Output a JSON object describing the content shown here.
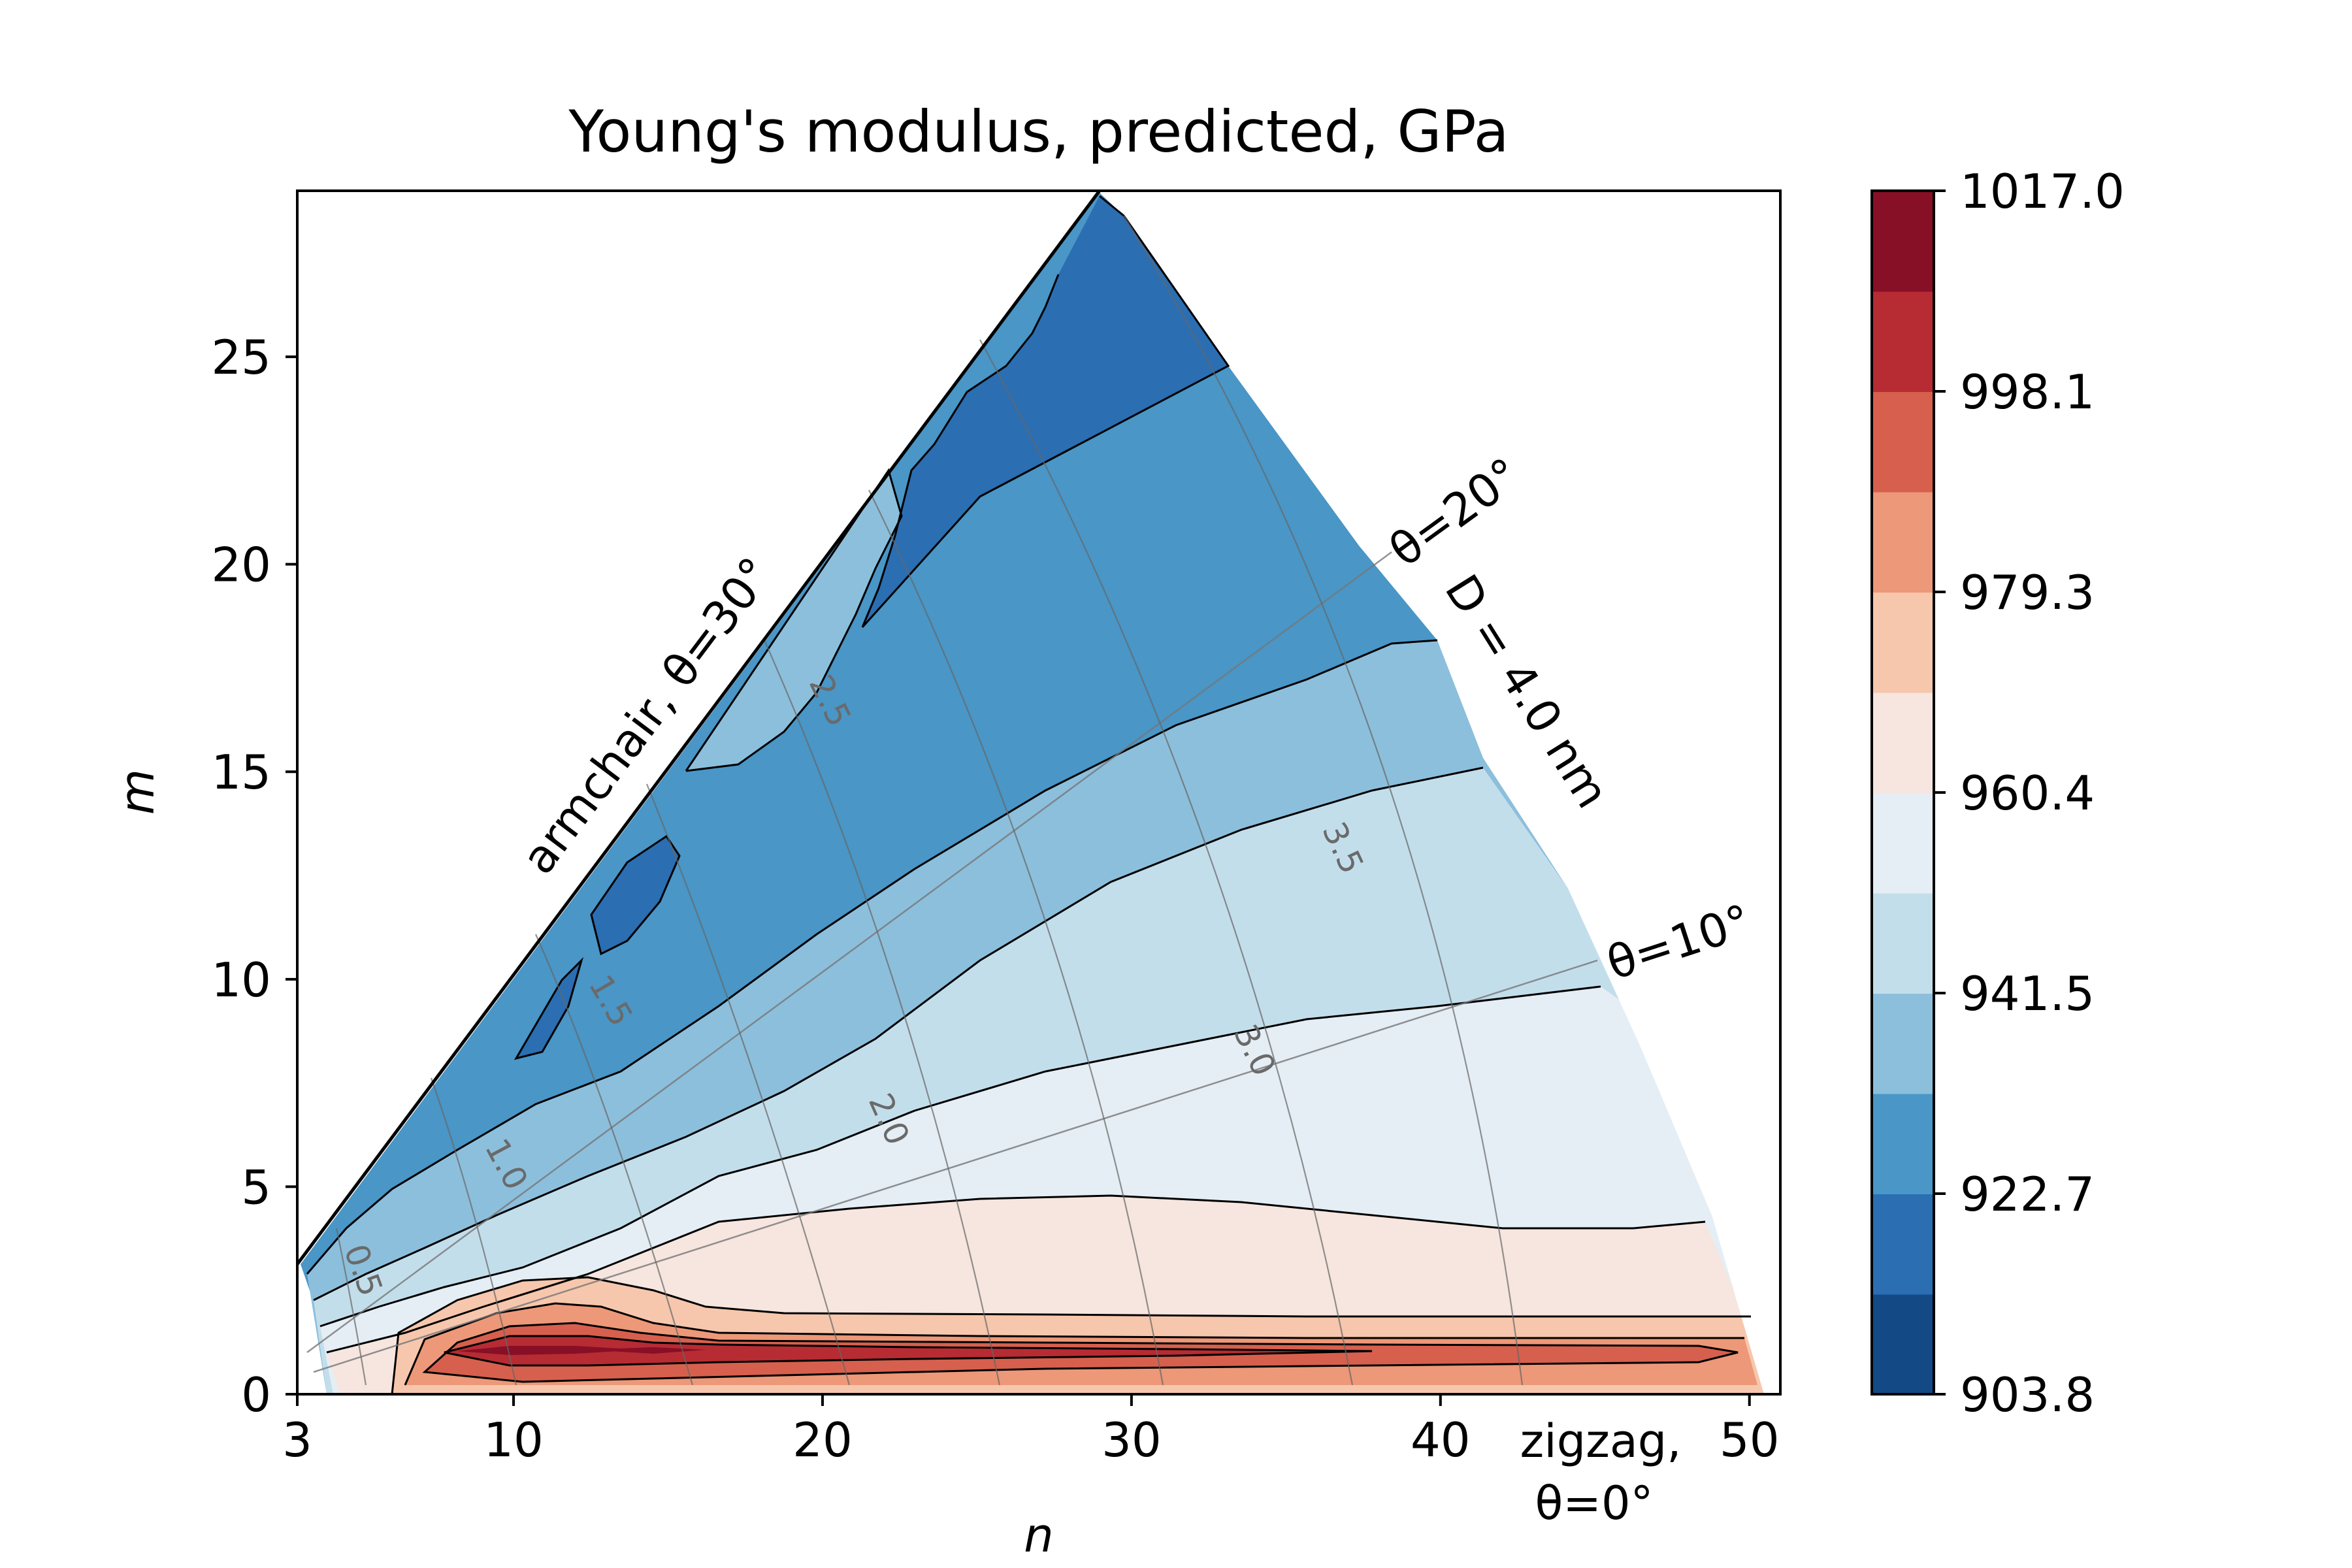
{
  "chart_data": {
    "type": "contourf",
    "title": "Young's modulus, predicted, GPa",
    "xlabel": "n",
    "ylabel": "m",
    "xlim": [
      3,
      51
    ],
    "ylim": [
      0,
      29
    ],
    "x_ticks": [
      3,
      10,
      20,
      30,
      40,
      50
    ],
    "y_ticks": [
      0,
      5,
      10,
      15,
      20,
      25
    ],
    "colorbar": {
      "ticks": [
        "1017.0",
        "998.1",
        "979.3",
        "960.4",
        "941.5",
        "922.7",
        "903.8"
      ],
      "min": 903.8,
      "max": 1017.0,
      "levels": 12,
      "colors": [
        "#053061",
        "#2166ac",
        "#4393c3",
        "#92c5de",
        "#d1e5f0",
        "#f7f7f7",
        "#fddbc7",
        "#f4a582",
        "#d6604d",
        "#b2182b",
        "#67001f",
        "#4a0011"
      ],
      "band_colors": [
        "#134a86",
        "#2b6eb2",
        "#4996c7",
        "#8cbfdc",
        "#c3deeb",
        "#e5eef5",
        "#f6e6df",
        "#f6c7ad",
        "#ed9878",
        "#d6604d",
        "#b72b33",
        "#870f26"
      ]
    },
    "annotations": {
      "armchair": "armchair, θ=30°",
      "zigzag_line1": "zigzag,",
      "zigzag_line2": "θ=0°",
      "theta20": "θ=20°",
      "theta10": "θ=10°",
      "diameter": "D = 4.0 nm"
    },
    "diameter_contour_labels": [
      "0.5",
      "1.0",
      "1.5",
      "2.0",
      "2.5",
      "3.0",
      "3.5"
    ],
    "value_regions_GPa": [
      {
        "region": "m ≤ 1 (near zigzag)",
        "value_range": [
          979.3,
          1017.0
        ]
      },
      {
        "region": "m ≈ 1–4",
        "value_range": [
          960.4,
          969.9
        ]
      },
      {
        "region": "m ≈ 4–9",
        "value_range": [
          951.0,
          960.4
        ]
      },
      {
        "region": "m ≈ 9–15",
        "value_range": [
          941.5,
          951.0
        ]
      },
      {
        "region": "m ≈ 15–20",
        "value_range": [
          932.1,
          941.5
        ]
      },
      {
        "region": "near armchair",
        "value_range": [
          903.8,
          932.1
        ]
      }
    ]
  }
}
